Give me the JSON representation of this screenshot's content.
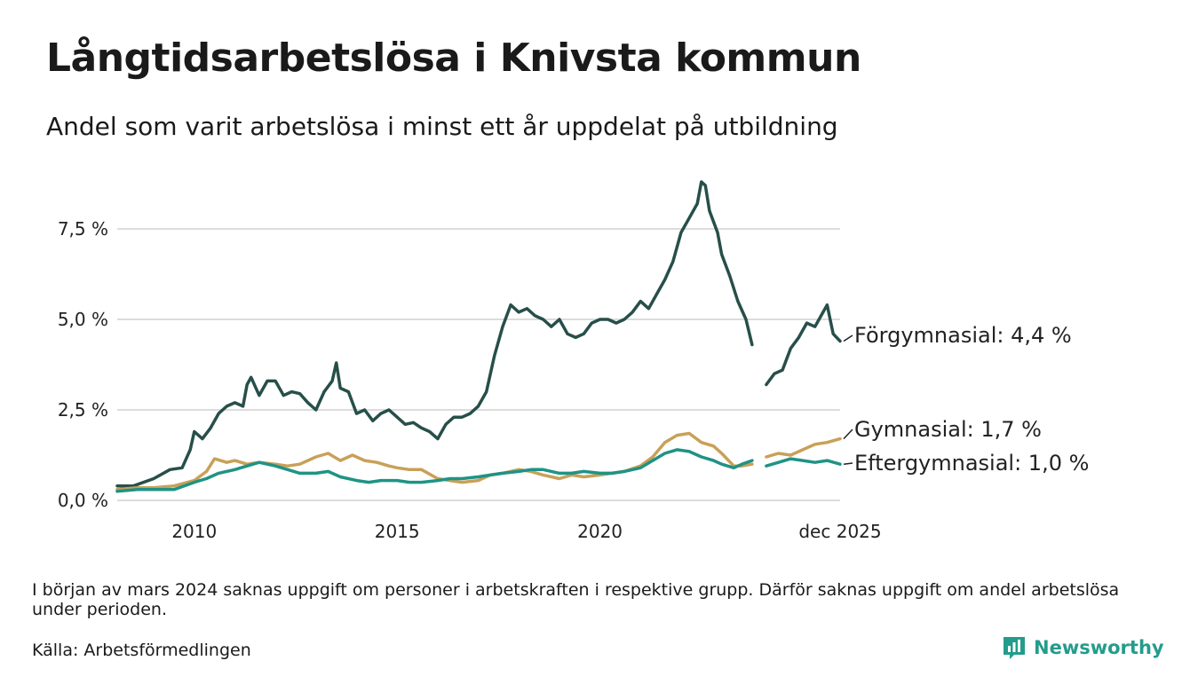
{
  "title": "Långtidsarbetslösa i Knivsta kommun",
  "subtitle": "Andel som varit arbetslösa i minst ett år uppdelat på utbildning",
  "note": "I början av mars 2024 saknas uppgift om personer i arbetskraften i respektive grupp. Därför saknas uppgift om andel arbetslösa under perioden.",
  "source": "Källa: Arbetsförmedlingen",
  "brand": "Newsworthy",
  "chart_data": {
    "type": "line",
    "title": "Långtidsarbetslösa i Knivsta kommun",
    "xlabel": "",
    "ylabel": "",
    "xlim": [
      2008.1,
      2025.92
    ],
    "ylim": [
      0,
      8.8
    ],
    "yticks": [
      0,
      2.5,
      5.0,
      7.5
    ],
    "ytick_labels": [
      "0,0 %",
      "2,5 %",
      "5,0 %",
      "7,5 %"
    ],
    "xticks": [
      2010,
      2015,
      2020,
      2025.92
    ],
    "xtick_labels": [
      "2010",
      "2015",
      "2020",
      "dec 2025"
    ],
    "grid": true,
    "gap": [
      2023.75,
      2024.1
    ],
    "series": [
      {
        "name": "Förgymnasial",
        "end_label": "Förgymnasial: 4,4 %",
        "color": "#274f4a",
        "points": [
          [
            2008.1,
            0.4
          ],
          [
            2008.5,
            0.4
          ],
          [
            2009.0,
            0.6
          ],
          [
            2009.4,
            0.85
          ],
          [
            2009.7,
            0.9
          ],
          [
            2009.9,
            1.4
          ],
          [
            2010.0,
            1.9
          ],
          [
            2010.2,
            1.7
          ],
          [
            2010.4,
            2.0
          ],
          [
            2010.6,
            2.4
          ],
          [
            2010.8,
            2.6
          ],
          [
            2011.0,
            2.7
          ],
          [
            2011.2,
            2.6
          ],
          [
            2011.3,
            3.2
          ],
          [
            2011.4,
            3.4
          ],
          [
            2011.6,
            2.9
          ],
          [
            2011.8,
            3.3
          ],
          [
            2012.0,
            3.3
          ],
          [
            2012.2,
            2.9
          ],
          [
            2012.4,
            3.0
          ],
          [
            2012.6,
            2.95
          ],
          [
            2012.8,
            2.7
          ],
          [
            2013.0,
            2.5
          ],
          [
            2013.2,
            3.0
          ],
          [
            2013.4,
            3.3
          ],
          [
            2013.5,
            3.8
          ],
          [
            2013.6,
            3.1
          ],
          [
            2013.8,
            3.0
          ],
          [
            2014.0,
            2.4
          ],
          [
            2014.2,
            2.5
          ],
          [
            2014.4,
            2.2
          ],
          [
            2014.6,
            2.4
          ],
          [
            2014.8,
            2.5
          ],
          [
            2015.0,
            2.3
          ],
          [
            2015.2,
            2.1
          ],
          [
            2015.4,
            2.15
          ],
          [
            2015.6,
            2.0
          ],
          [
            2015.8,
            1.9
          ],
          [
            2016.0,
            1.7
          ],
          [
            2016.2,
            2.1
          ],
          [
            2016.4,
            2.3
          ],
          [
            2016.6,
            2.3
          ],
          [
            2016.8,
            2.4
          ],
          [
            2017.0,
            2.6
          ],
          [
            2017.2,
            3.0
          ],
          [
            2017.4,
            4.0
          ],
          [
            2017.6,
            4.8
          ],
          [
            2017.8,
            5.4
          ],
          [
            2018.0,
            5.2
          ],
          [
            2018.2,
            5.3
          ],
          [
            2018.4,
            5.1
          ],
          [
            2018.6,
            5.0
          ],
          [
            2018.8,
            4.8
          ],
          [
            2019.0,
            5.0
          ],
          [
            2019.2,
            4.6
          ],
          [
            2019.4,
            4.5
          ],
          [
            2019.6,
            4.6
          ],
          [
            2019.8,
            4.9
          ],
          [
            2020.0,
            5.0
          ],
          [
            2020.2,
            5.0
          ],
          [
            2020.4,
            4.9
          ],
          [
            2020.6,
            5.0
          ],
          [
            2020.8,
            5.2
          ],
          [
            2021.0,
            5.5
          ],
          [
            2021.2,
            5.3
          ],
          [
            2021.4,
            5.7
          ],
          [
            2021.6,
            6.1
          ],
          [
            2021.8,
            6.6
          ],
          [
            2022.0,
            7.4
          ],
          [
            2022.2,
            7.8
          ],
          [
            2022.4,
            8.2
          ],
          [
            2022.5,
            8.8
          ],
          [
            2022.6,
            8.7
          ],
          [
            2022.7,
            8.0
          ],
          [
            2022.9,
            7.4
          ],
          [
            2023.0,
            6.8
          ],
          [
            2023.2,
            6.2
          ],
          [
            2023.4,
            5.5
          ],
          [
            2023.6,
            5.0
          ],
          [
            2023.75,
            4.3
          ],
          [
            2024.1,
            3.2
          ],
          [
            2024.3,
            3.5
          ],
          [
            2024.5,
            3.6
          ],
          [
            2024.7,
            4.2
          ],
          [
            2024.9,
            4.5
          ],
          [
            2025.1,
            4.9
          ],
          [
            2025.3,
            4.8
          ],
          [
            2025.5,
            5.2
          ],
          [
            2025.6,
            5.4
          ],
          [
            2025.75,
            4.6
          ],
          [
            2025.92,
            4.4
          ]
        ]
      },
      {
        "name": "Gymnasial",
        "end_label": "Gymnasial: 1,7 %",
        "color": "#c9a058",
        "points": [
          [
            2008.1,
            0.3
          ],
          [
            2008.6,
            0.35
          ],
          [
            2009.0,
            0.35
          ],
          [
            2009.5,
            0.4
          ],
          [
            2010.0,
            0.55
          ],
          [
            2010.3,
            0.8
          ],
          [
            2010.5,
            1.15
          ],
          [
            2010.8,
            1.05
          ],
          [
            2011.0,
            1.1
          ],
          [
            2011.3,
            1.0
          ],
          [
            2011.6,
            1.05
          ],
          [
            2012.0,
            1.0
          ],
          [
            2012.3,
            0.95
          ],
          [
            2012.6,
            1.0
          ],
          [
            2013.0,
            1.2
          ],
          [
            2013.3,
            1.3
          ],
          [
            2013.6,
            1.1
          ],
          [
            2013.9,
            1.25
          ],
          [
            2014.2,
            1.1
          ],
          [
            2014.5,
            1.05
          ],
          [
            2014.8,
            0.95
          ],
          [
            2015.0,
            0.9
          ],
          [
            2015.3,
            0.85
          ],
          [
            2015.6,
            0.85
          ],
          [
            2016.0,
            0.6
          ],
          [
            2016.3,
            0.55
          ],
          [
            2016.6,
            0.5
          ],
          [
            2017.0,
            0.55
          ],
          [
            2017.3,
            0.7
          ],
          [
            2017.6,
            0.75
          ],
          [
            2018.0,
            0.85
          ],
          [
            2018.3,
            0.8
          ],
          [
            2018.6,
            0.7
          ],
          [
            2019.0,
            0.6
          ],
          [
            2019.3,
            0.7
          ],
          [
            2019.6,
            0.65
          ],
          [
            2020.0,
            0.7
          ],
          [
            2020.3,
            0.75
          ],
          [
            2020.6,
            0.8
          ],
          [
            2021.0,
            0.95
          ],
          [
            2021.3,
            1.2
          ],
          [
            2021.6,
            1.6
          ],
          [
            2021.9,
            1.8
          ],
          [
            2022.2,
            1.85
          ],
          [
            2022.5,
            1.6
          ],
          [
            2022.8,
            1.5
          ],
          [
            2023.0,
            1.3
          ],
          [
            2023.3,
            0.95
          ],
          [
            2023.5,
            0.95
          ],
          [
            2023.75,
            1.0
          ],
          [
            2024.1,
            1.2
          ],
          [
            2024.4,
            1.3
          ],
          [
            2024.7,
            1.25
          ],
          [
            2025.0,
            1.4
          ],
          [
            2025.3,
            1.55
          ],
          [
            2025.6,
            1.6
          ],
          [
            2025.92,
            1.7
          ]
        ]
      },
      {
        "name": "Eftergymnasial",
        "end_label": "Eftergymnasial: 1,0 %",
        "color": "#1f9385",
        "points": [
          [
            2008.1,
            0.25
          ],
          [
            2008.6,
            0.3
          ],
          [
            2009.0,
            0.3
          ],
          [
            2009.5,
            0.3
          ],
          [
            2010.0,
            0.5
          ],
          [
            2010.3,
            0.6
          ],
          [
            2010.6,
            0.75
          ],
          [
            2011.0,
            0.85
          ],
          [
            2011.3,
            0.95
          ],
          [
            2011.6,
            1.05
          ],
          [
            2012.0,
            0.95
          ],
          [
            2012.3,
            0.85
          ],
          [
            2012.6,
            0.75
          ],
          [
            2013.0,
            0.75
          ],
          [
            2013.3,
            0.8
          ],
          [
            2013.6,
            0.65
          ],
          [
            2014.0,
            0.55
          ],
          [
            2014.3,
            0.5
          ],
          [
            2014.6,
            0.55
          ],
          [
            2015.0,
            0.55
          ],
          [
            2015.3,
            0.5
          ],
          [
            2015.6,
            0.5
          ],
          [
            2016.0,
            0.55
          ],
          [
            2016.3,
            0.6
          ],
          [
            2016.6,
            0.6
          ],
          [
            2017.0,
            0.65
          ],
          [
            2017.3,
            0.7
          ],
          [
            2017.6,
            0.75
          ],
          [
            2018.0,
            0.8
          ],
          [
            2018.3,
            0.85
          ],
          [
            2018.6,
            0.85
          ],
          [
            2019.0,
            0.75
          ],
          [
            2019.3,
            0.75
          ],
          [
            2019.6,
            0.8
          ],
          [
            2020.0,
            0.75
          ],
          [
            2020.3,
            0.75
          ],
          [
            2020.6,
            0.8
          ],
          [
            2021.0,
            0.9
          ],
          [
            2021.3,
            1.1
          ],
          [
            2021.6,
            1.3
          ],
          [
            2021.9,
            1.4
          ],
          [
            2022.2,
            1.35
          ],
          [
            2022.5,
            1.2
          ],
          [
            2022.8,
            1.1
          ],
          [
            2023.0,
            1.0
          ],
          [
            2023.3,
            0.9
          ],
          [
            2023.5,
            1.0
          ],
          [
            2023.75,
            1.1
          ],
          [
            2024.1,
            0.95
          ],
          [
            2024.4,
            1.05
          ],
          [
            2024.7,
            1.15
          ],
          [
            2025.0,
            1.1
          ],
          [
            2025.3,
            1.05
          ],
          [
            2025.6,
            1.1
          ],
          [
            2025.92,
            1.0
          ]
        ]
      }
    ]
  }
}
